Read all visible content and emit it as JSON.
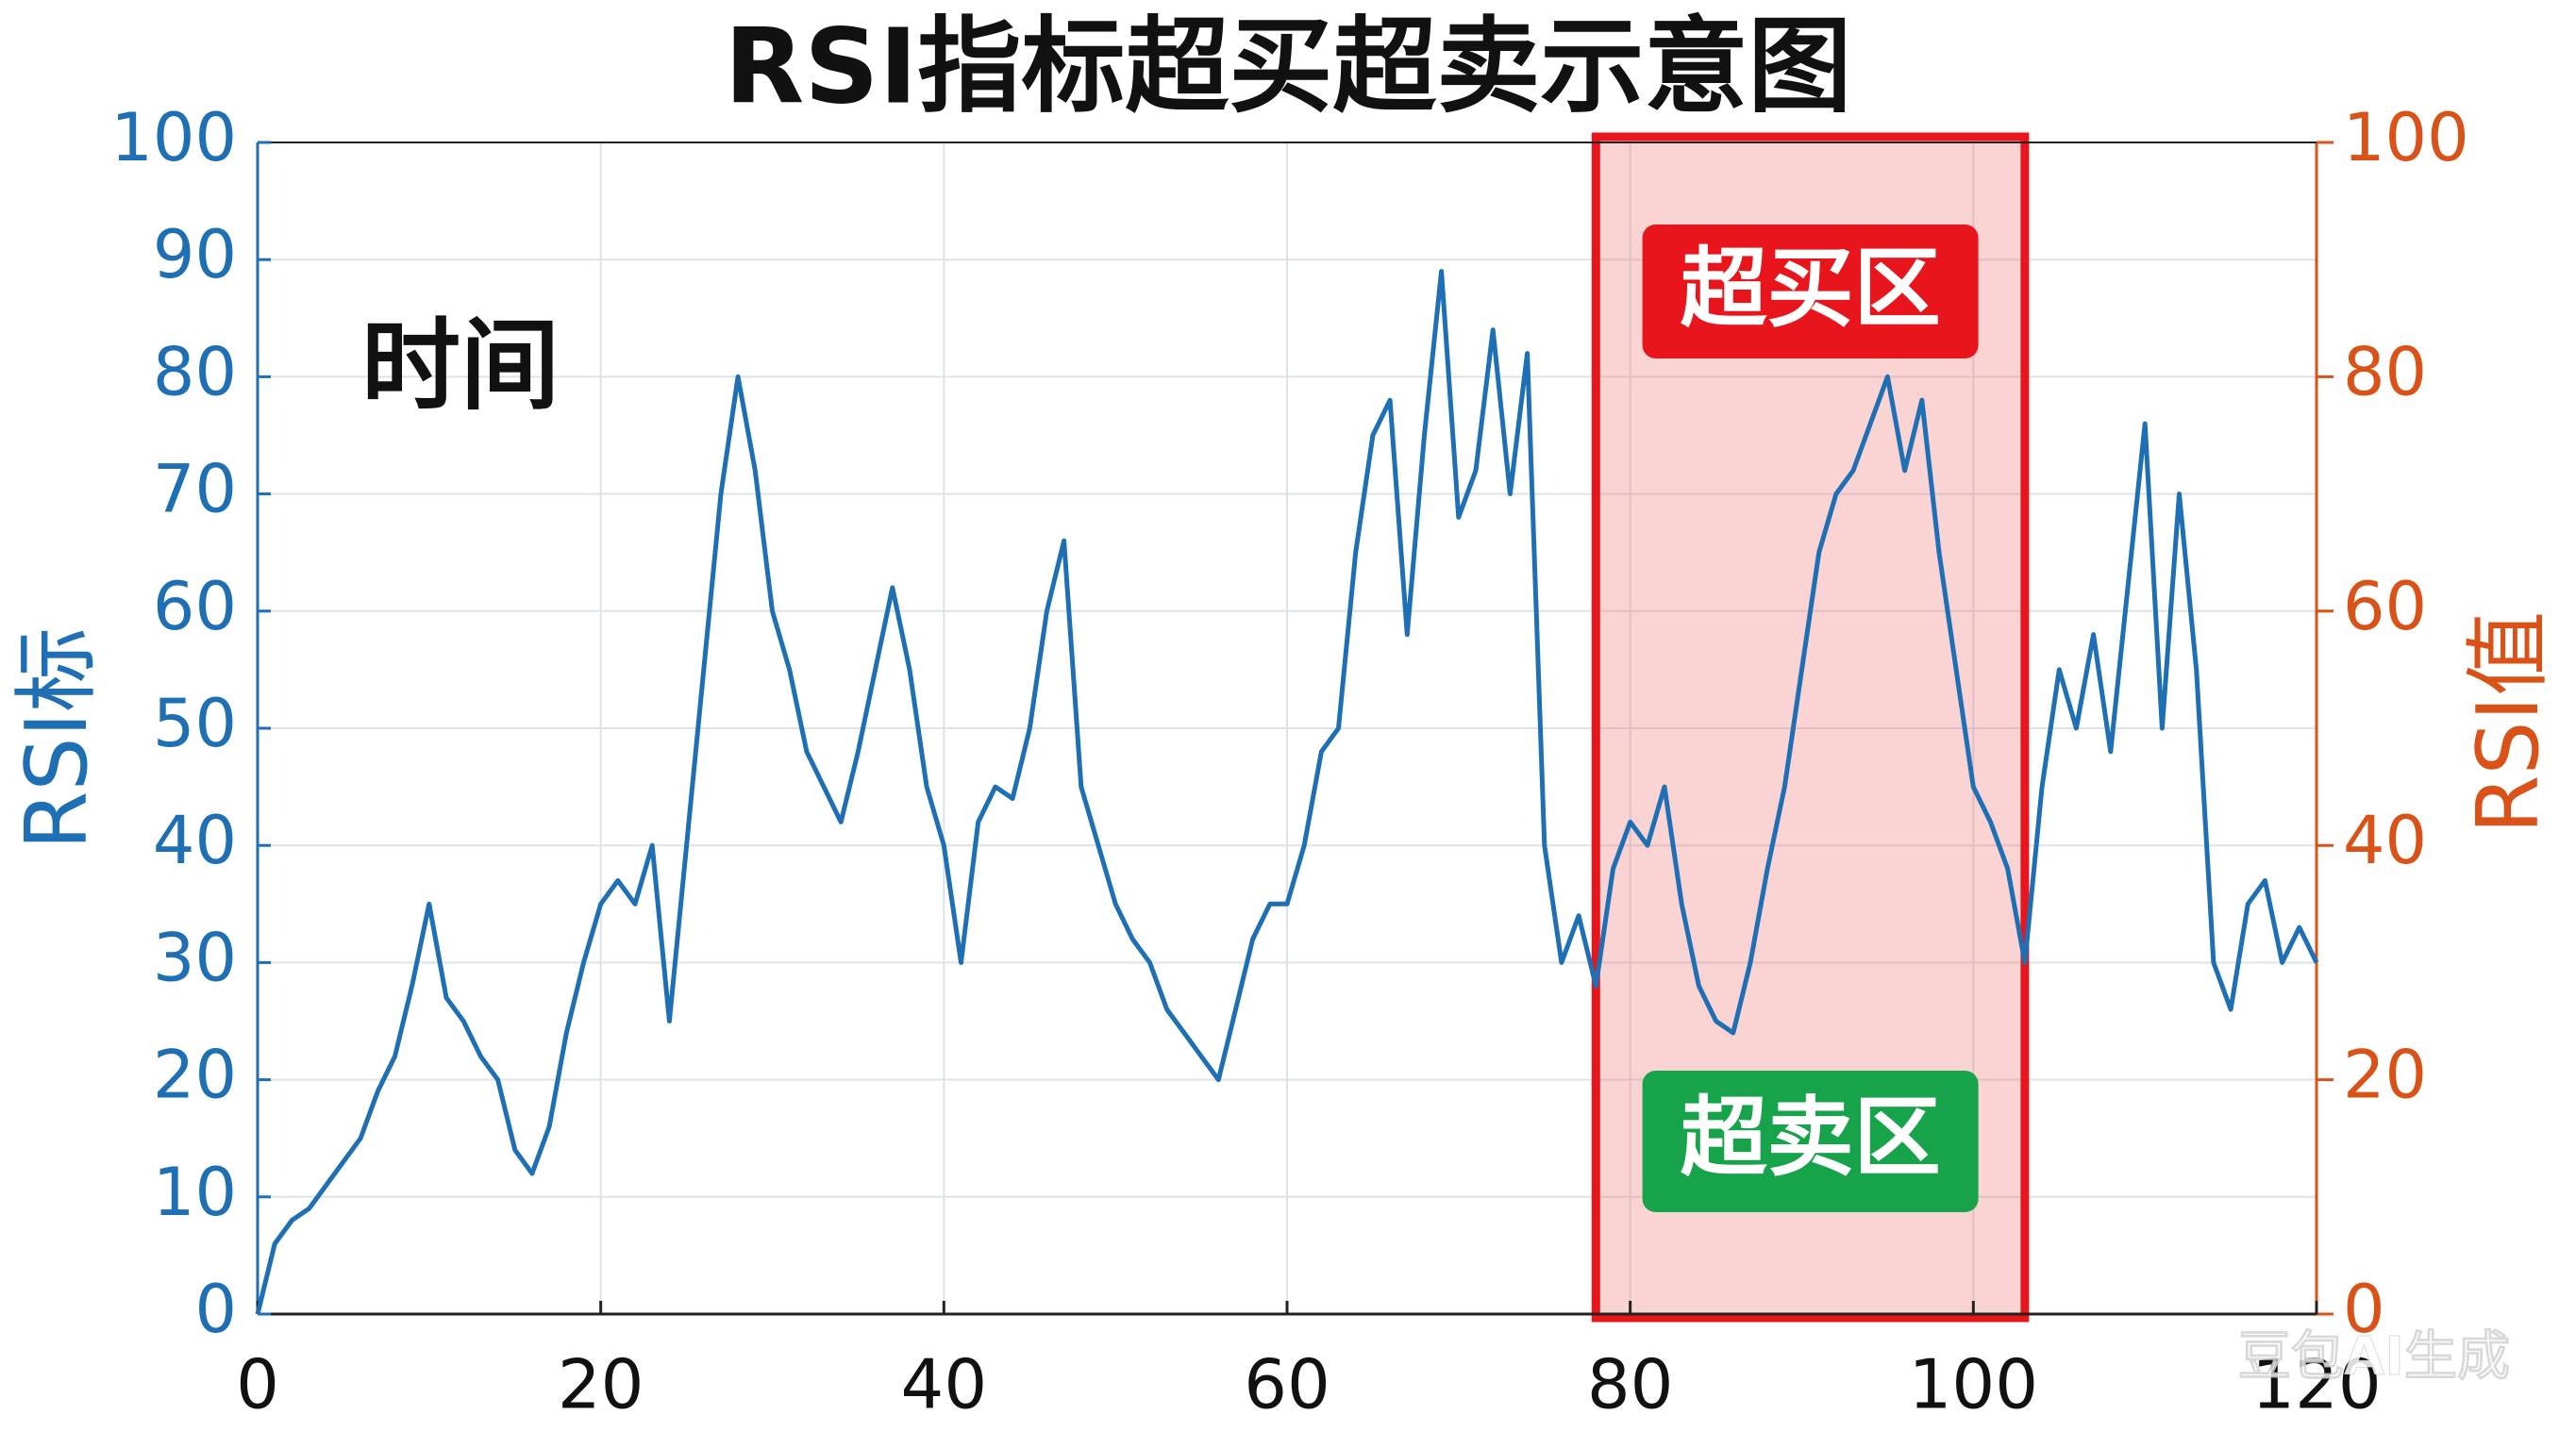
{
  "chart_data": {
    "type": "line",
    "title": "RSI指标超买超卖示意图",
    "annotation": "时间",
    "ylabel": "RSI标",
    "y2label": "RSI值",
    "overbought_label": "超买区",
    "oversold_label": "超卖区",
    "watermark": "豆包AI生成",
    "highlight": [
      78,
      103
    ],
    "x": [
      0,
      1,
      2,
      3,
      4,
      5,
      6,
      7,
      8,
      9,
      10,
      11,
      12,
      13,
      14,
      15,
      16,
      17,
      18,
      19,
      20,
      21,
      22,
      23,
      24,
      25,
      26,
      27,
      28,
      29,
      30,
      31,
      32,
      33,
      34,
      35,
      36,
      37,
      38,
      39,
      40,
      41,
      42,
      43,
      44,
      45,
      46,
      47,
      48,
      49,
      50,
      51,
      52,
      53,
      54,
      55,
      56,
      57,
      58,
      59,
      60,
      61,
      62,
      63,
      64,
      65,
      66,
      67,
      68,
      69,
      70,
      71,
      72,
      73,
      74,
      75,
      76,
      77,
      78,
      79,
      80,
      81,
      82,
      83,
      84,
      85,
      86,
      87,
      88,
      89,
      90,
      91,
      92,
      93,
      94,
      95,
      96,
      97,
      98,
      99,
      100,
      101,
      102,
      103,
      104,
      105,
      106,
      107,
      108,
      109,
      110,
      111,
      112,
      113,
      114,
      115,
      116,
      117,
      118,
      119,
      120
    ],
    "series": [
      {
        "name": "RSI",
        "color": "#1f6fb5",
        "values": [
          0,
          6,
          8,
          9,
          11,
          13,
          15,
          19,
          22,
          28,
          35,
          27,
          25,
          22,
          20,
          14,
          12,
          16,
          24,
          30,
          35,
          37,
          35,
          40,
          25,
          40,
          55,
          70,
          80,
          72,
          60,
          55,
          48,
          45,
          42,
          48,
          55,
          62,
          55,
          45,
          40,
          30,
          42,
          45,
          44,
          50,
          60,
          66,
          45,
          40,
          35,
          32,
          30,
          26,
          24,
          22,
          20,
          26,
          32,
          35,
          35,
          40,
          48,
          50,
          65,
          75,
          78,
          58,
          75,
          89,
          68,
          72,
          84,
          70,
          82,
          40,
          30,
          34,
          28,
          38,
          42,
          40,
          45,
          35,
          28,
          25,
          24,
          30,
          38,
          45,
          55,
          65,
          70,
          72,
          76,
          80,
          72,
          78,
          65,
          55,
          45,
          42,
          38,
          30,
          45,
          55,
          50,
          58,
          48,
          62,
          76,
          50,
          70,
          55,
          30,
          26,
          35,
          37,
          30,
          33,
          30
        ]
      }
    ],
    "xlim": [
      0,
      120
    ],
    "xticks": [
      0,
      20,
      40,
      60,
      80,
      100,
      120
    ],
    "ylim": [
      0,
      100
    ],
    "yticks": [
      0,
      10,
      20,
      30,
      40,
      50,
      60,
      70,
      80,
      90,
      100
    ],
    "y2lim": [
      0,
      100
    ],
    "y2ticks": [
      0,
      20,
      40,
      60,
      80,
      100
    ],
    "grid": true
  }
}
